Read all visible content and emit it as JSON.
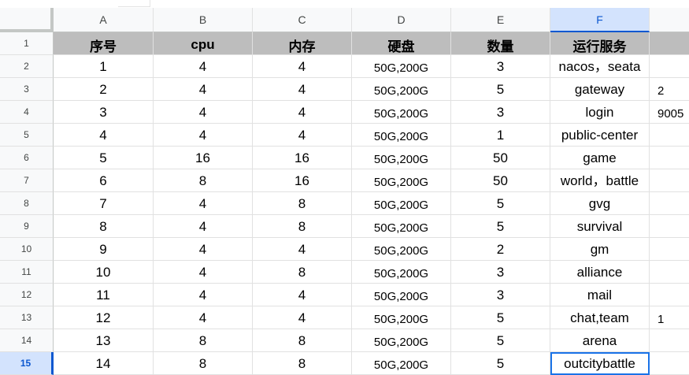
{
  "columns": [
    "A",
    "B",
    "C",
    "D",
    "E",
    "F",
    ""
  ],
  "selected_column": "F",
  "selected_row": 15,
  "header_row": {
    "row_number": "1",
    "cells": [
      "序号",
      "cpu",
      "内存",
      "硬盘",
      "数量",
      "运行服务",
      ""
    ]
  },
  "rows": [
    {
      "row_number": "2",
      "cells": [
        "1",
        "4",
        "4",
        "50G,200G",
        "3",
        "nacos，seata",
        ""
      ]
    },
    {
      "row_number": "3",
      "cells": [
        "2",
        "4",
        "4",
        "50G,200G",
        "5",
        "gateway",
        "2"
      ]
    },
    {
      "row_number": "4",
      "cells": [
        "3",
        "4",
        "4",
        "50G,200G",
        "3",
        "login",
        "9005"
      ]
    },
    {
      "row_number": "5",
      "cells": [
        "4",
        "4",
        "4",
        "50G,200G",
        "1",
        "public-center",
        ""
      ]
    },
    {
      "row_number": "6",
      "cells": [
        "5",
        "16",
        "16",
        "50G,200G",
        "50",
        "game",
        ""
      ]
    },
    {
      "row_number": "7",
      "cells": [
        "6",
        "8",
        "16",
        "50G,200G",
        "50",
        "world，battle",
        ""
      ]
    },
    {
      "row_number": "8",
      "cells": [
        "7",
        "4",
        "8",
        "50G,200G",
        "5",
        "gvg",
        ""
      ]
    },
    {
      "row_number": "9",
      "cells": [
        "8",
        "4",
        "8",
        "50G,200G",
        "5",
        "survival",
        ""
      ]
    },
    {
      "row_number": "10",
      "cells": [
        "9",
        "4",
        "4",
        "50G,200G",
        "2",
        "gm",
        ""
      ]
    },
    {
      "row_number": "11",
      "cells": [
        "10",
        "4",
        "8",
        "50G,200G",
        "3",
        "alliance",
        ""
      ]
    },
    {
      "row_number": "12",
      "cells": [
        "11",
        "4",
        "4",
        "50G,200G",
        "3",
        "mail",
        ""
      ]
    },
    {
      "row_number": "13",
      "cells": [
        "12",
        "4",
        "4",
        "50G,200G",
        "5",
        "chat,team",
        "1"
      ]
    },
    {
      "row_number": "14",
      "cells": [
        "13",
        "8",
        "8",
        "50G,200G",
        "5",
        "arena",
        ""
      ]
    },
    {
      "row_number": "15",
      "cells": [
        "14",
        "8",
        "8",
        "50G,200G",
        "5",
        "outcitybattle",
        ""
      ]
    }
  ],
  "colors": {
    "header_fill": "#bdbdbd",
    "selection_accent": "#0b57d0",
    "selection_fill": "#d3e3fd"
  }
}
